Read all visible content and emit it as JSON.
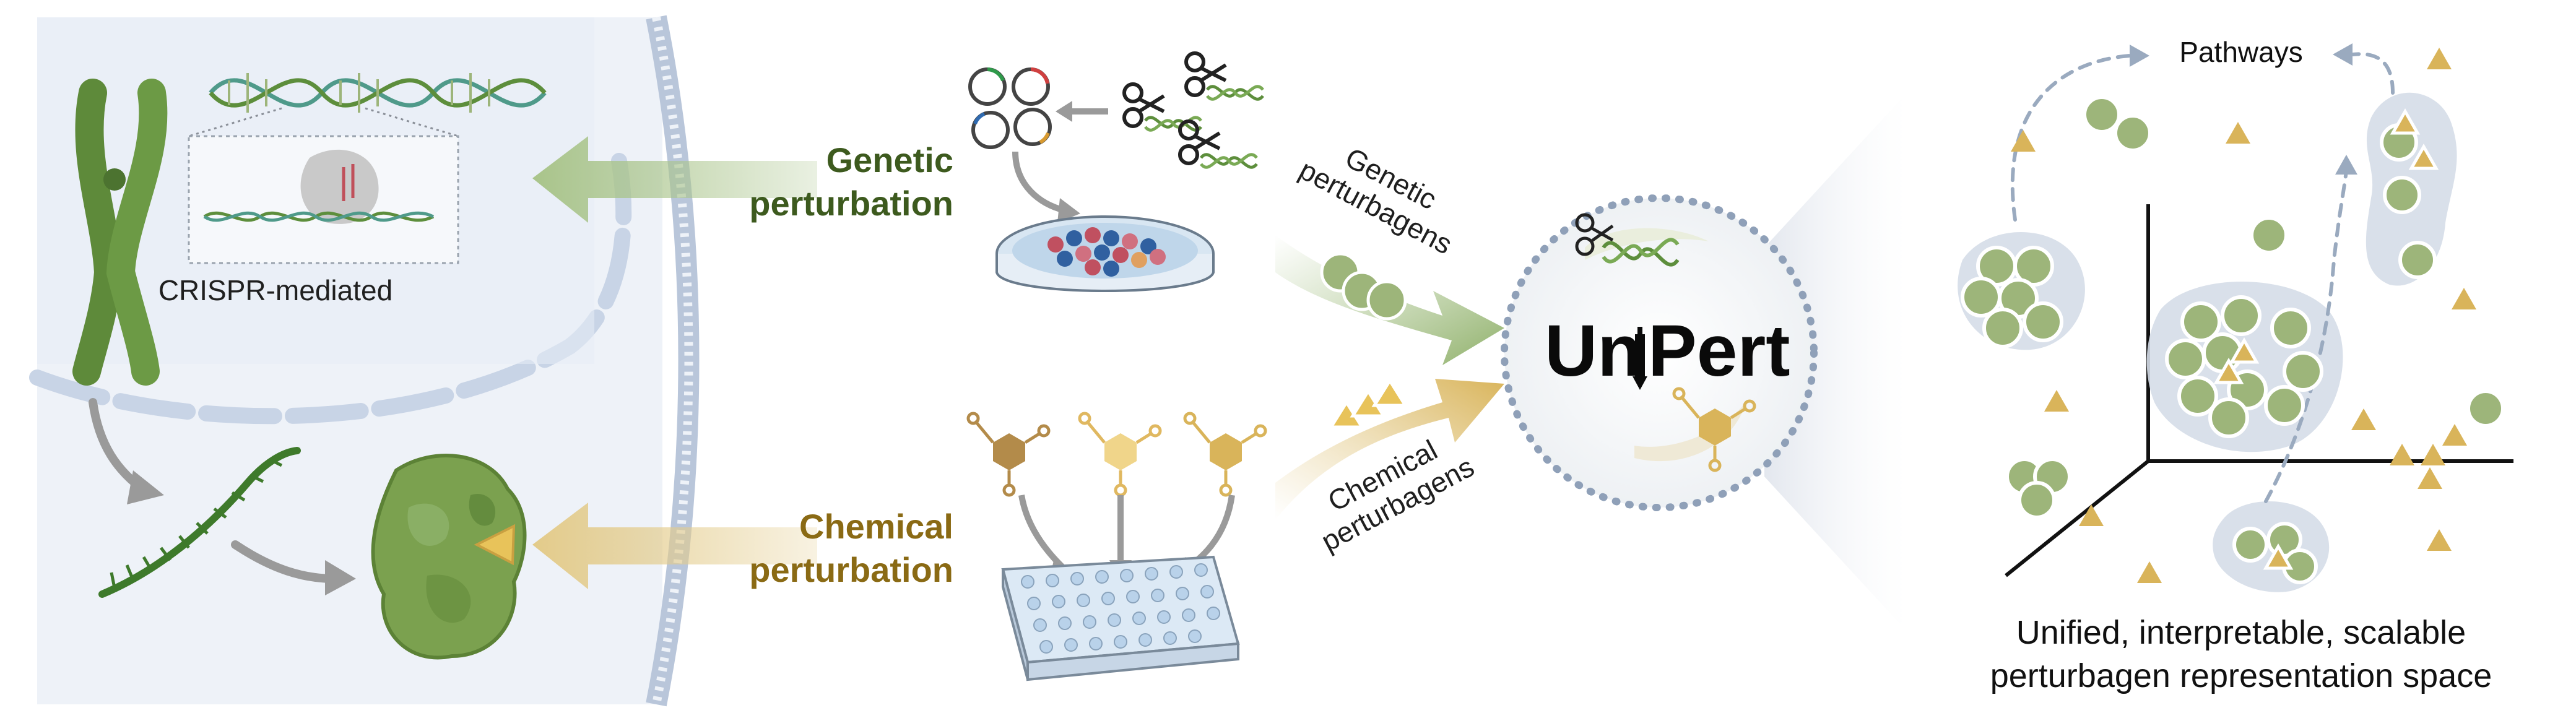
{
  "cell_panel": {
    "crispr_label": "CRISPR-mediated"
  },
  "perturbations": {
    "genetic": {
      "line1": "Genetic",
      "line2": "perturbation",
      "color": "#3d5a1e"
    },
    "chemical": {
      "line1": "Chemical",
      "line2": "perturbation",
      "color": "#8a6a14"
    }
  },
  "perturbagens": {
    "genetic": {
      "line1": "Genetic",
      "line2": "perturbagens"
    },
    "chemical": {
      "line1": "Chemical",
      "line2": "perturbagens"
    }
  },
  "model": {
    "name_part1": "Un",
    "name_part2": "Pert"
  },
  "space": {
    "pathways_label": "Pathways",
    "caption_line1": "Unified, interpretable, scalable",
    "caption_line2": "perturbagen representation space"
  },
  "colors": {
    "green_point": "#9db57a",
    "gold_triangle": "#d9b45a",
    "cell_bg": "#eef2f8",
    "cluster_bg": "#d5dde8",
    "genetic_arrow": "#a9c48a",
    "chemical_arrow": "#e3cb8a"
  }
}
